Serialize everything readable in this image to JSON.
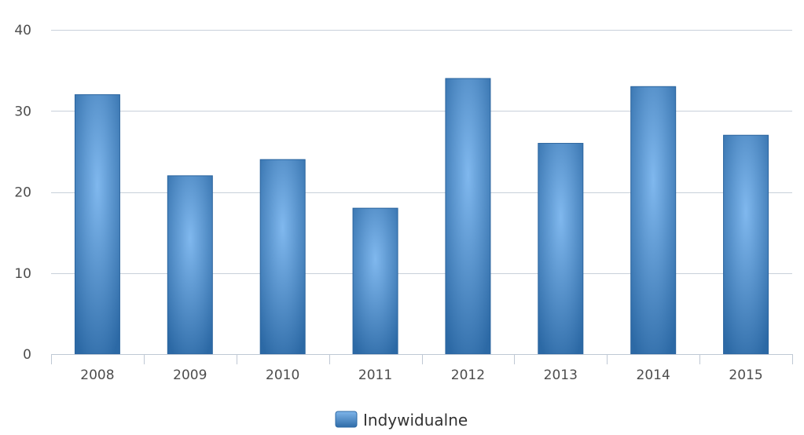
{
  "chart_data": {
    "type": "bar",
    "categories": [
      "2008",
      "2009",
      "2010",
      "2011",
      "2012",
      "2013",
      "2014",
      "2015"
    ],
    "series": [
      {
        "name": "Indywidualne",
        "values": [
          32,
          22,
          24,
          18,
          34,
          26,
          33,
          27
        ]
      }
    ],
    "ylim": [
      0,
      40
    ],
    "yticks": [
      0,
      10,
      20,
      30,
      40
    ],
    "grid": true,
    "legend_position": "bottom-center",
    "colors": {
      "bar_edge": "#2c69a5",
      "bar_center": "#80b8ee",
      "grid": "#c8d0da",
      "axis": "#bfc8d4"
    }
  }
}
